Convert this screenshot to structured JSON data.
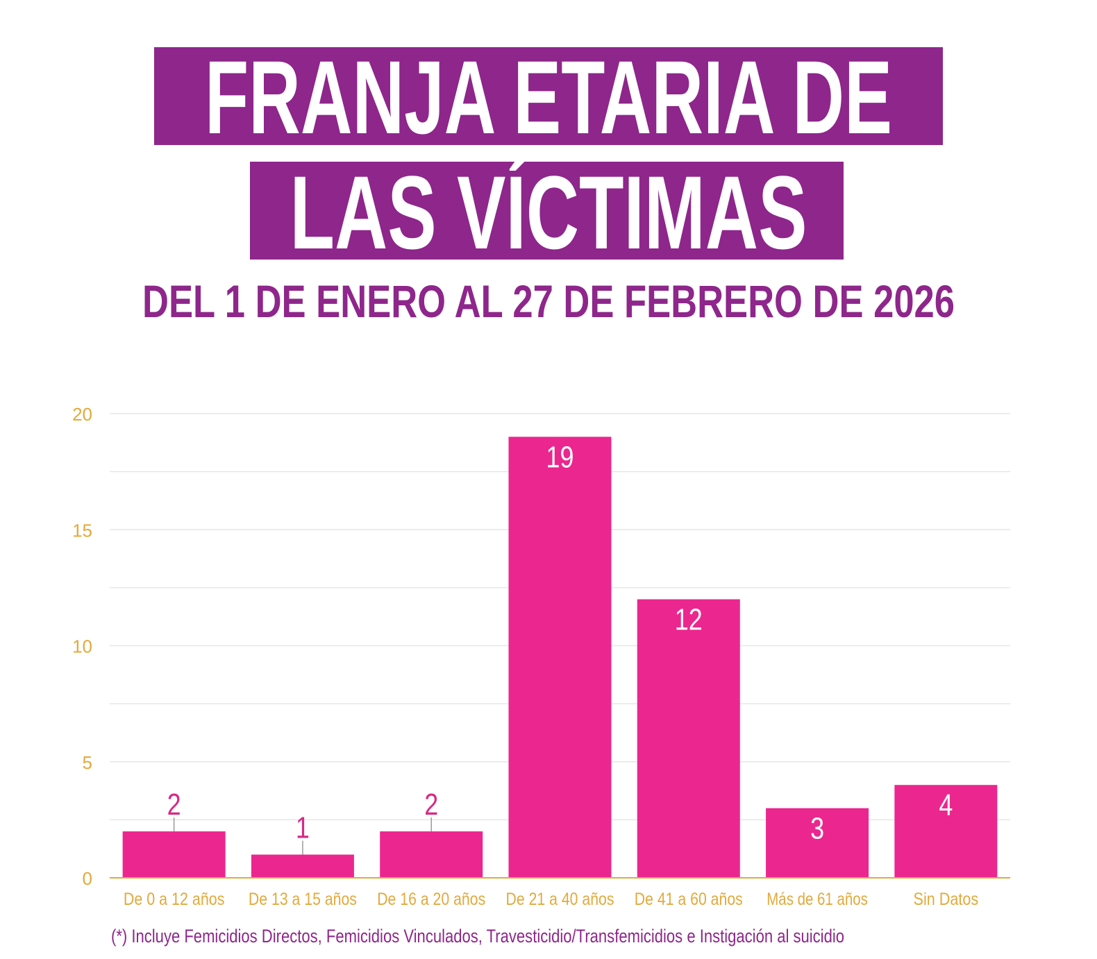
{
  "colors": {
    "purple": "#8e268b",
    "pink": "#ec268f",
    "gold": "#e3a93a",
    "grid": "#e6e6e6"
  },
  "header": {
    "title_line1": "FRANJA ETARIA DE",
    "title_line2": "LAS VÍCTIMAS",
    "subtitle": "DEL 1 DE ENERO AL 27 DE FEBRERO DE 2026"
  },
  "footnote": "(*) Incluye Femicidios Directos, Femicidios Vinculados,  Travesticidio/Transfemicidios e Instigación al suicidio",
  "chart_data": {
    "type": "bar",
    "title": "FRANJA ETARIA DE LAS VÍCTIMAS",
    "subtitle": "DEL 1 DE ENERO AL 27 DE FEBRERO DE 2026",
    "categories": [
      "De 0 a 12 años",
      "De 13 a 15 años",
      "De 16 a 20 años",
      "De 21 a 40 años",
      "De 41 a 60 años",
      "Más de 61 años",
      "Sin Datos"
    ],
    "values": [
      2,
      1,
      2,
      19,
      12,
      3,
      4
    ],
    "xlabel": "",
    "ylabel": "",
    "ylim": [
      0,
      20
    ],
    "yticks": [
      0,
      5,
      10,
      15,
      20
    ],
    "grid_step": 2.5,
    "grid": true,
    "legend": "none"
  }
}
